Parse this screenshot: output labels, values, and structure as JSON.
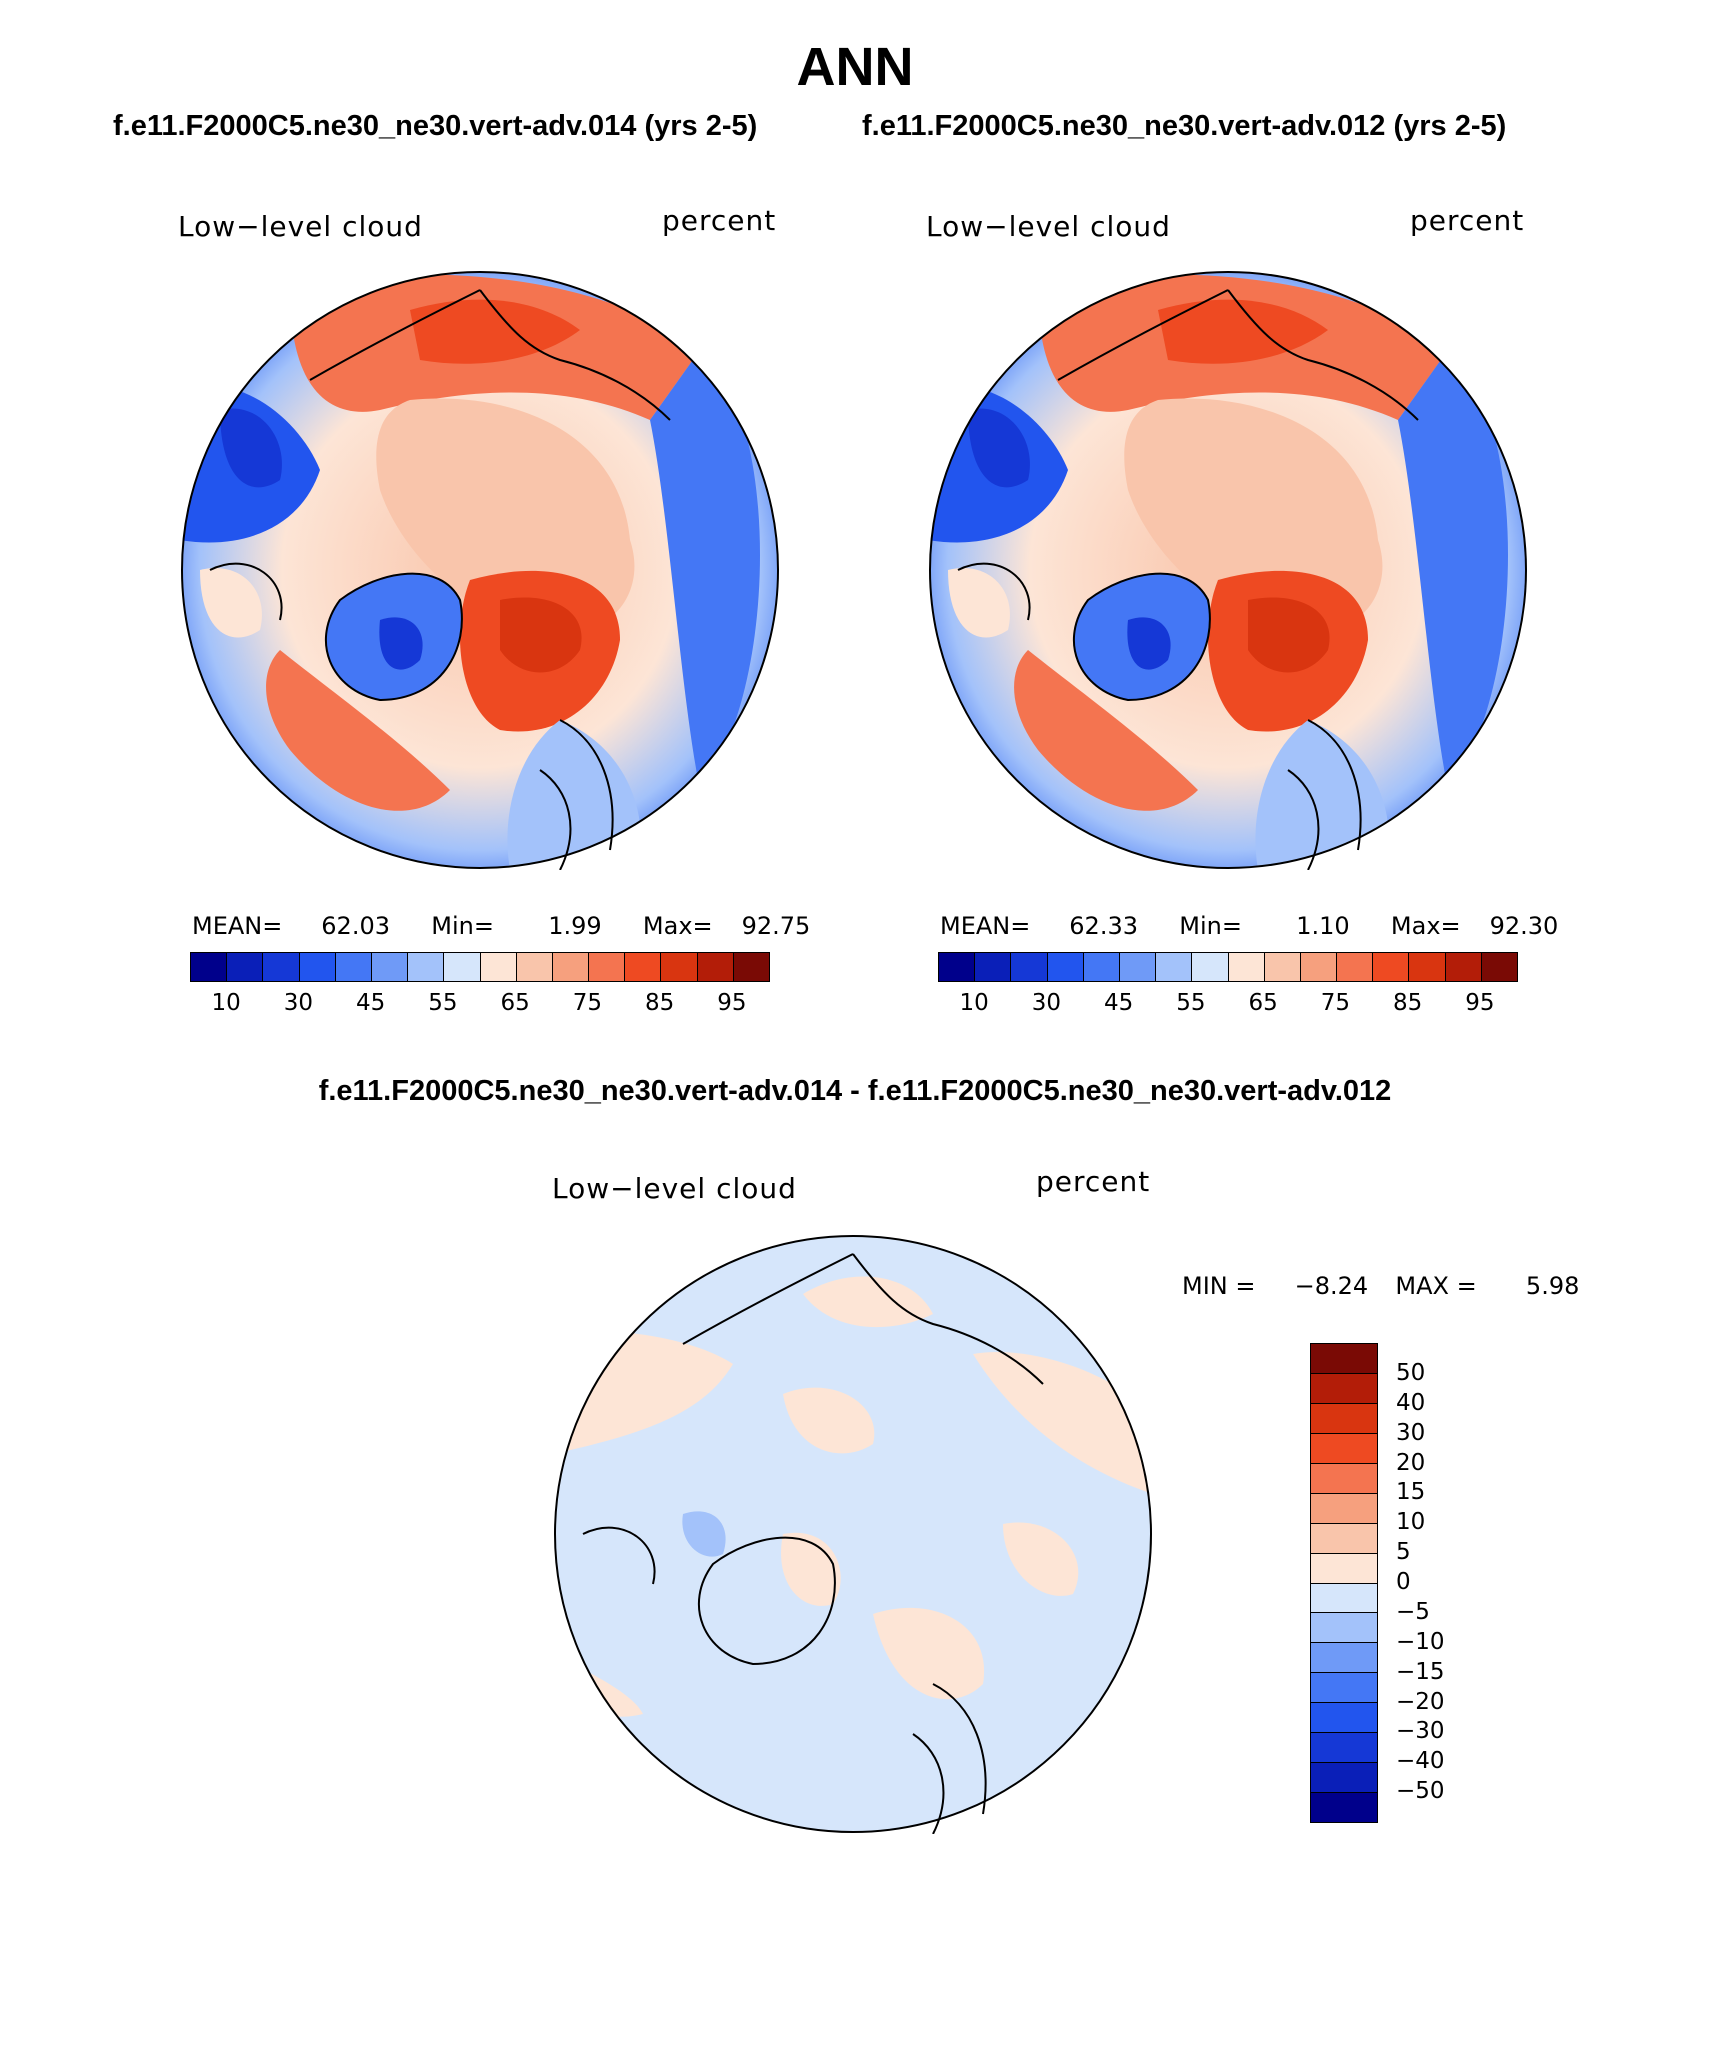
{
  "figure": {
    "title": "ANN",
    "case1_title": "f.e11.F2000C5.ne30_ne30.vert-adv.014 (yrs 2-5)",
    "case2_title": "f.e11.F2000C5.ne30_ne30.vert-adv.012 (yrs 2-5)",
    "diff_title": "f.e11.F2000C5.ne30_ne30.vert-adv.014 - f.e11.F2000C5.ne30_ne30.vert-adv.012"
  },
  "panels": [
    {
      "variable": "Low−level cloud",
      "units": "percent",
      "mean_label": "MEAN=",
      "mean": "62.03",
      "min_label": "Min=",
      "min": "1.99",
      "max_label": "Max=",
      "max": "92.75"
    },
    {
      "variable": "Low−level cloud",
      "units": "percent",
      "mean_label": "MEAN=",
      "mean": "62.33",
      "min_label": "Min=",
      "min": "1.10",
      "max_label": "Max=",
      "max": "92.30"
    },
    {
      "variable": "Low−level cloud",
      "units": "percent",
      "min_label": "MIN =",
      "min": "−8.24",
      "max_label": "MAX =",
      "max": "5.98"
    }
  ],
  "chart_data": [
    {
      "type": "heatmap",
      "projection": "north polar stereographic",
      "title": "f.e11.F2000C5.ne30_ne30.vert-adv.014 (yrs 2-5)",
      "variable": "Low-level cloud",
      "units": "percent",
      "mean": 62.03,
      "min": 1.99,
      "max": 92.75,
      "colorbar_levels": [
        10,
        30,
        45,
        55,
        65,
        75,
        85,
        95
      ],
      "colorbar_colors": [
        "#00008b",
        "#0a1fb8",
        "#1538d6",
        "#2255ee",
        "#4477f5",
        "#6f9af7",
        "#a3c2fa",
        "#d6e6fb",
        "#fde5d6",
        "#f9c5ab",
        "#f6a07e",
        "#f47450",
        "#ee4a22",
        "#d93510",
        "#b31d08",
        "#7a0a05"
      ]
    },
    {
      "type": "heatmap",
      "projection": "north polar stereographic",
      "title": "f.e11.F2000C5.ne30_ne30.vert-adv.012 (yrs 2-5)",
      "variable": "Low-level cloud",
      "units": "percent",
      "mean": 62.33,
      "min": 1.1,
      "max": 92.3,
      "colorbar_levels": [
        10,
        30,
        45,
        55,
        65,
        75,
        85,
        95
      ],
      "colorbar_colors": [
        "#00008b",
        "#0a1fb8",
        "#1538d6",
        "#2255ee",
        "#4477f5",
        "#6f9af7",
        "#a3c2fa",
        "#d6e6fb",
        "#fde5d6",
        "#f9c5ab",
        "#f6a07e",
        "#f47450",
        "#ee4a22",
        "#d93510",
        "#b31d08",
        "#7a0a05"
      ]
    },
    {
      "type": "heatmap",
      "projection": "north polar stereographic",
      "title": "f.e11.F2000C5.ne30_ne30.vert-adv.014 - f.e11.F2000C5.ne30_ne30.vert-adv.012",
      "variable": "Low-level cloud",
      "units": "percent",
      "min": -8.24,
      "max": 5.98,
      "colorbar_levels": [
        "50",
        "40",
        "30",
        "20",
        "15",
        "10",
        "5",
        "0",
        "−5",
        "−10",
        "−15",
        "−20",
        "−30",
        "−40",
        "−50"
      ],
      "colorbar_colors": [
        "#7a0a05",
        "#b31d08",
        "#d93510",
        "#ee4a22",
        "#f47450",
        "#f6a07e",
        "#f9c5ab",
        "#fde5d6",
        "#d6e6fb",
        "#a3c2fa",
        "#6f9af7",
        "#4477f5",
        "#2255ee",
        "#1538d6",
        "#0a1fb8",
        "#00008b"
      ]
    }
  ]
}
